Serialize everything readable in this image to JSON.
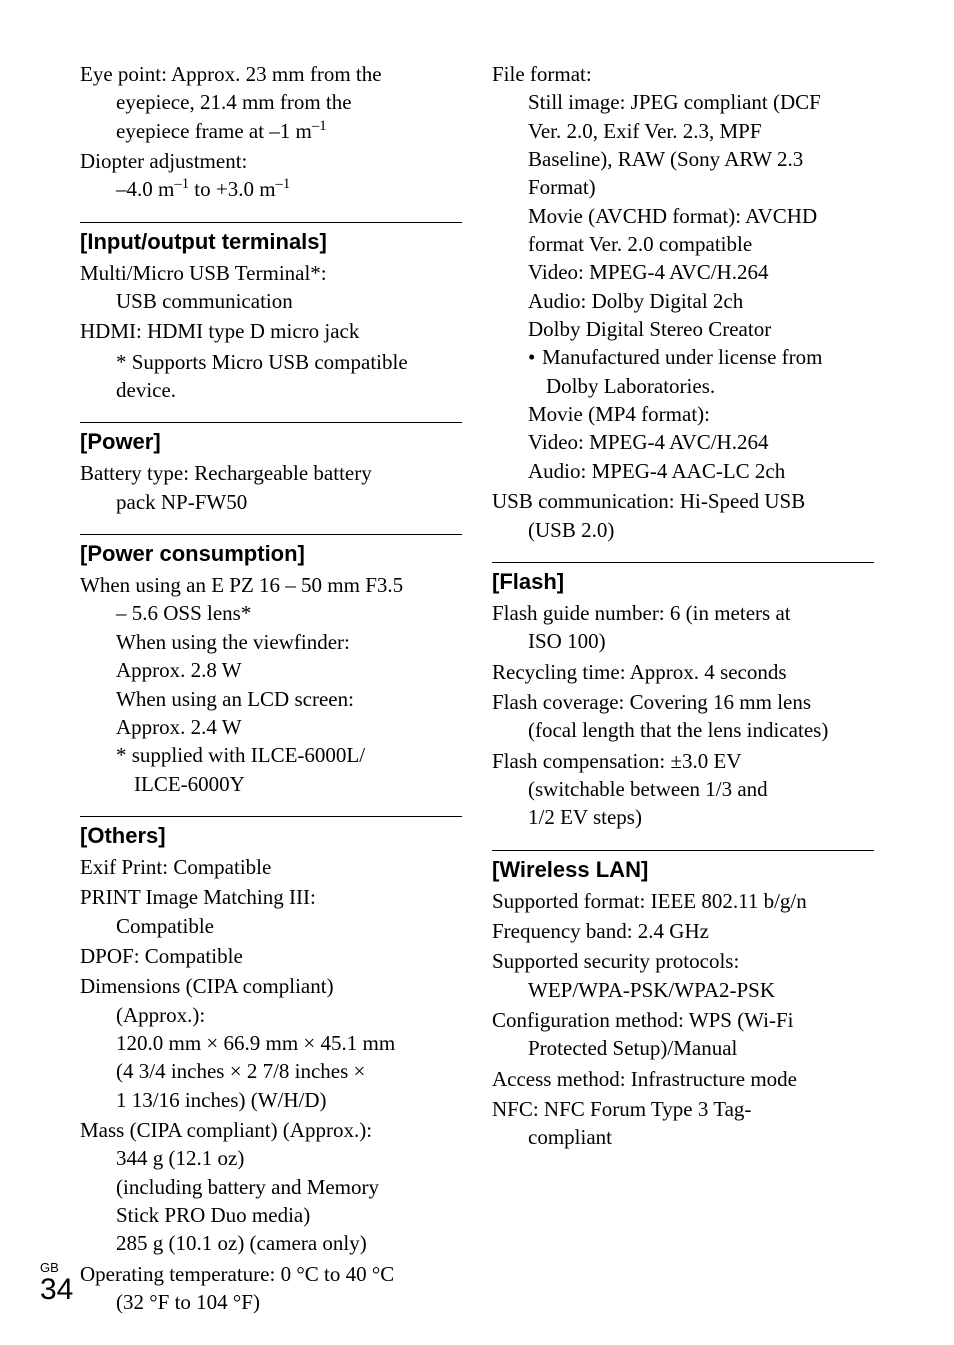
{
  "page": {
    "number": "34",
    "marker": "GB"
  },
  "leftCol": {
    "preItems": {
      "eyepoint_label": "Eye point:",
      "eyepoint_l1": "Approx. 23 mm from the",
      "eyepoint_l2": "eyepiece, 21.4 mm from the",
      "eyepoint_l3": "eyepiece frame at –1 m",
      "diopter_label": "Diopter adjustment:",
      "diopter_val_a": "–4.0 m",
      "diopter_val_b": " to +3.0 m"
    },
    "io": {
      "heading": "[Input/output terminals]",
      "usb_l1": "Multi/Micro USB Terminal*:",
      "usb_l2": "USB communication",
      "hdmi": "HDMI: HDMI type D micro jack",
      "note_l1": "* Supports Micro USB compatible",
      "note_l2": "device."
    },
    "power": {
      "heading": "[Power]",
      "l1": "Battery type: Rechargeable battery",
      "l2": "pack NP-FW50"
    },
    "consumption": {
      "heading": "[Power consumption]",
      "l1": "When using an E PZ 16 – 50 mm F3.5",
      "l2": "– 5.6 OSS lens*",
      "l3": "When using the viewfinder:",
      "l4": "Approx. 2.8 W",
      "l5": "When using an LCD screen:",
      "l6": "Approx. 2.4 W",
      "l7": "* supplied with ILCE-6000L/",
      "l8": "ILCE-6000Y"
    },
    "others": {
      "heading": "[Others]",
      "exif": "Exif Print: Compatible",
      "print_l1": "PRINT Image Matching III:",
      "print_l2": "Compatible",
      "dpof": "DPOF: Compatible",
      "dim_l1": "Dimensions (CIPA compliant)",
      "dim_l2": "(Approx.):",
      "dim_l3": "120.0 mm × 66.9 mm × 45.1 mm",
      "dim_l4": "(4 3/4 inches × 2 7/8 inches ×",
      "dim_l5": "1 13/16 inches) (W/H/D)",
      "mass_l1": "Mass (CIPA compliant) (Approx.):",
      "mass_l2": "344 g (12.1 oz)",
      "mass_l3": "(including battery and Memory",
      "mass_l4": "Stick PRO Duo media)",
      "mass_l5": "285 g (10.1 oz) (camera only)",
      "temp_l1": "Operating temperature: 0 °C to 40 °C",
      "temp_l2": "(32 °F to 104 °F)"
    }
  },
  "rightCol": {
    "file": {
      "l1": "File format:",
      "l2": "Still image: JPEG compliant (DCF",
      "l3": "Ver. 2.0, Exif Ver. 2.3, MPF",
      "l4": "Baseline), RAW (Sony ARW 2.3",
      "l5": "Format)",
      "l6": "Movie (AVCHD format): AVCHD",
      "l7": "format Ver. 2.0 compatible",
      "l8": "Video: MPEG-4 AVC/H.264",
      "l9": "Audio: Dolby Digital 2ch",
      "l10": "Dolby Digital Stereo Creator",
      "bullet_l1": "Manufactured under license from",
      "bullet_l2": "Dolby Laboratories.",
      "l11": "Movie (MP4 format):",
      "l12": "Video: MPEG-4 AVC/H.264",
      "l13": "Audio: MPEG-4 AAC-LC 2ch",
      "usb_l1": "USB communication: Hi-Speed USB",
      "usb_l2": "(USB 2.0)"
    },
    "flash": {
      "heading": "[Flash]",
      "l1": "Flash guide number: 6 (in meters at",
      "l2": "ISO 100)",
      "l3": "Recycling time: Approx. 4 seconds",
      "l4": "Flash coverage: Covering 16 mm lens",
      "l5": "(focal length that the lens indicates)",
      "l6": "Flash compensation: ±3.0 EV",
      "l7": "(switchable between 1/3 and",
      "l8": "1/2 EV steps)"
    },
    "wlan": {
      "heading": "[Wireless LAN]",
      "l1": "Supported format: IEEE 802.11 b/g/n",
      "l2": "Frequency band: 2.4 GHz",
      "l3": "Supported security protocols:",
      "l4": "WEP/WPA-PSK/WPA2-PSK",
      "l5": "Configuration method: WPS (Wi-Fi",
      "l6": "Protected Setup)/Manual",
      "l7": "Access method: Infrastructure mode",
      "l8": "NFC: NFC Forum Type 3 Tag-",
      "l9": "compliant"
    }
  }
}
